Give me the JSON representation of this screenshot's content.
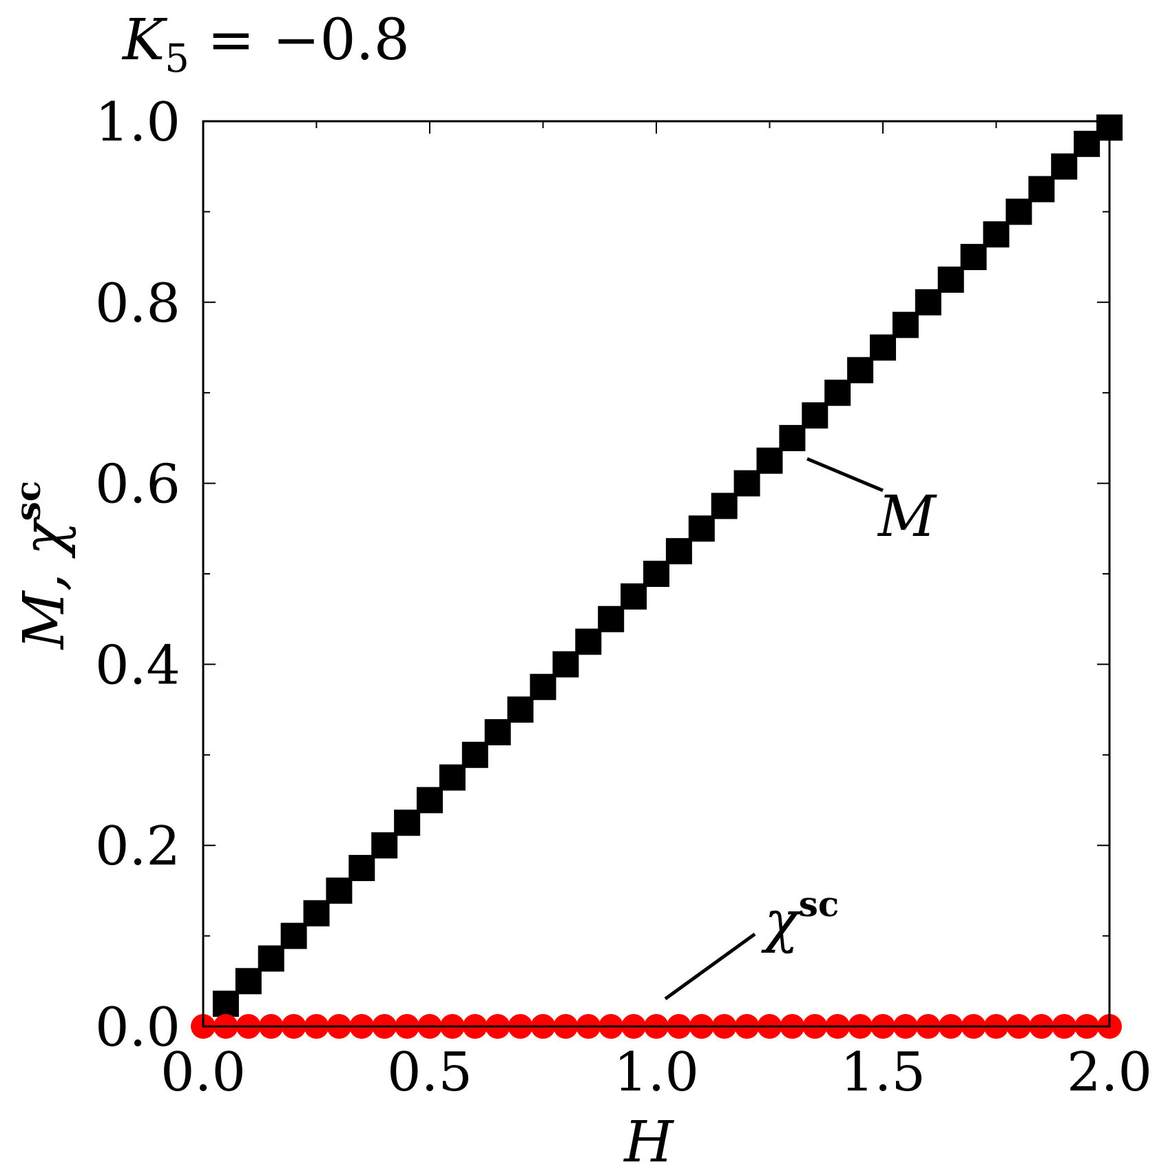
{
  "chart_data": {
    "type": "scatter",
    "title": "K",
    "title_sub": "5",
    "title_rest": " = −0.8",
    "xlabel": "H",
    "ylabel_main": "M, χ",
    "ylabel_sup": "sc",
    "xlim": [
      0.0,
      2.0
    ],
    "ylim": [
      0.0,
      1.0
    ],
    "x_ticks": [
      0.0,
      0.5,
      1.0,
      1.5,
      2.0
    ],
    "x_tick_labels": [
      "0.0",
      "0.5",
      "1.0",
      "1.5",
      "2.0"
    ],
    "y_ticks": [
      0.0,
      0.2,
      0.4,
      0.6,
      0.8,
      1.0
    ],
    "y_tick_labels": [
      "0.0",
      "0.2",
      "0.4",
      "0.6",
      "0.8",
      "1.0"
    ],
    "y_minor_ticks": [
      0.1,
      0.3,
      0.5,
      0.7,
      0.9
    ],
    "x_minor_ticks": [
      0.25,
      0.75,
      1.25,
      1.75
    ],
    "grid": false,
    "series": [
      {
        "name": "M",
        "marker": "square",
        "color": "#000000",
        "x": [
          0.05,
          0.1,
          0.15,
          0.2,
          0.25,
          0.3,
          0.35,
          0.4,
          0.45,
          0.5,
          0.55,
          0.6,
          0.65,
          0.7,
          0.75,
          0.8,
          0.85,
          0.9,
          0.95,
          1.0,
          1.05,
          1.1,
          1.15,
          1.2,
          1.25,
          1.3,
          1.35,
          1.4,
          1.45,
          1.5,
          1.55,
          1.6,
          1.65,
          1.7,
          1.75,
          1.8,
          1.85,
          1.9,
          1.95,
          2.0
        ],
        "y": [
          0.025,
          0.05,
          0.075,
          0.1,
          0.125,
          0.15,
          0.175,
          0.2,
          0.225,
          0.25,
          0.275,
          0.3,
          0.325,
          0.35,
          0.375,
          0.4,
          0.425,
          0.45,
          0.475,
          0.5,
          0.525,
          0.55,
          0.575,
          0.6,
          0.625,
          0.65,
          0.675,
          0.7,
          0.725,
          0.75,
          0.775,
          0.8,
          0.825,
          0.85,
          0.875,
          0.9,
          0.925,
          0.95,
          0.975,
          0.993
        ]
      },
      {
        "name": "χ",
        "name_sup": "sc",
        "marker": "circle",
        "color": "#ff0000",
        "x": [
          0.0,
          0.05,
          0.1,
          0.15,
          0.2,
          0.25,
          0.3,
          0.35,
          0.4,
          0.45,
          0.5,
          0.55,
          0.6,
          0.65,
          0.7,
          0.75,
          0.8,
          0.85,
          0.9,
          0.95,
          1.0,
          1.05,
          1.1,
          1.15,
          1.2,
          1.25,
          1.3,
          1.35,
          1.4,
          1.45,
          1.5,
          1.55,
          1.6,
          1.65,
          1.7,
          1.75,
          1.8,
          1.85,
          1.9,
          1.95,
          2.0
        ],
        "y": [
          0.0,
          0.0,
          0.0,
          0.0,
          0.0,
          0.0,
          0.0,
          0.0,
          0.0,
          0.0,
          0.0,
          0.0,
          0.0,
          0.0,
          0.0,
          0.0,
          0.0,
          0.0,
          0.0,
          0.0,
          0.0,
          0.0,
          0.0,
          0.0,
          0.0,
          0.0,
          0.0,
          0.0,
          0.0,
          0.0,
          0.0,
          0.0,
          0.0,
          0.0,
          0.0,
          0.0,
          0.0,
          0.0,
          0.0,
          0.0,
          0.0
        ]
      }
    ],
    "annotations": [
      {
        "text": "M",
        "series": "M"
      },
      {
        "text": "χ",
        "sup": "sc",
        "series": "χ"
      }
    ]
  }
}
